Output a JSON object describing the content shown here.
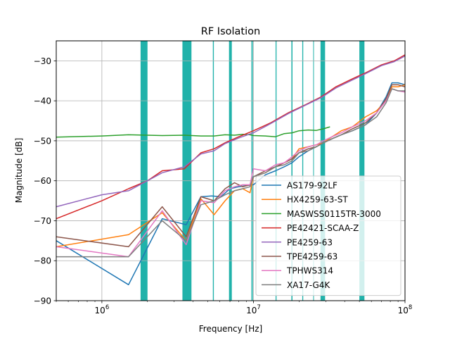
{
  "chart_data": {
    "type": "line",
    "title": "RF Isolation",
    "xlabel": "Frequency [Hz]",
    "ylabel": "Magnitude [dB]",
    "xscale": "log",
    "xlim": [
      500000,
      100000000
    ],
    "ylim": [
      -90,
      -25
    ],
    "grid": true,
    "legend_position": "lower-right",
    "x_ticks": [
      {
        "value": 1000000,
        "base": "10",
        "exp": "6"
      },
      {
        "value": 10000000,
        "base": "10",
        "exp": "7"
      },
      {
        "value": 100000000,
        "base": "10",
        "exp": "8"
      }
    ],
    "y_ticks": [
      {
        "value": -90,
        "label": "−90"
      },
      {
        "value": -80,
        "label": "−80"
      },
      {
        "value": -70,
        "label": "−70"
      },
      {
        "value": -60,
        "label": "−60"
      },
      {
        "value": -50,
        "label": "−50"
      },
      {
        "value": -40,
        "label": "−40"
      },
      {
        "value": -30,
        "label": "−30"
      }
    ],
    "highlight_color": "#20b2aa",
    "highlight_bands": [
      [
        1800000,
        2000000
      ],
      [
        3400000,
        3900000
      ],
      [
        5400000,
        5480000
      ],
      [
        6900000,
        7200000
      ],
      [
        9700000,
        9900000
      ],
      [
        14000000,
        14200000
      ],
      [
        17800000,
        18100000
      ],
      [
        21000000,
        21300000
      ],
      [
        24800000,
        25000000
      ],
      [
        27700000,
        29700000
      ],
      [
        50000000,
        54000000
      ]
    ],
    "series": [
      {
        "name": "AS179-92LF",
        "color": "#1f77b4",
        "x": [
          500000,
          1500000,
          2500000,
          3600000,
          4500000,
          5300000,
          6100000,
          7000000,
          8000000,
          9000000,
          10000000,
          12000000,
          14000000,
          16000000,
          18000000,
          20000000,
          23000000,
          26000000,
          29000000,
          33000000,
          38000000,
          45000000,
          55000000,
          65000000,
          75000000,
          82000000,
          90000000,
          100000000
        ],
        "y": [
          -75,
          -86,
          -69.5,
          -71,
          -64,
          -63.8,
          -64,
          -62,
          -61.5,
          -61.2,
          -61,
          -58.5,
          -57.5,
          -56.5,
          -55.5,
          -54,
          -52.5,
          -51.5,
          -50.5,
          -49.5,
          -48.5,
          -47.5,
          -46,
          -43,
          -39,
          -35.5,
          -35.5,
          -36
        ]
      },
      {
        "name": "HX4259-63-ST",
        "color": "#ff7f0e",
        "x": [
          500000,
          1500000,
          2500000,
          3600000,
          4500000,
          5500000,
          6500000,
          7500000,
          8500000,
          9500000,
          10000000,
          12000000,
          14000000,
          16000000,
          18000000,
          20000000,
          23000000,
          26000000,
          29000000,
          33000000,
          38000000,
          45000000,
          55000000,
          65000000,
          75000000,
          82000000,
          90000000,
          100000000
        ],
        "y": [
          -76.5,
          -73.5,
          -68,
          -75,
          -64.5,
          -68.5,
          -65,
          -62.5,
          -62,
          -63,
          -59,
          -58,
          -56.5,
          -55.5,
          -54.5,
          -52,
          -51.5,
          -51,
          -50.5,
          -49,
          -47.5,
          -46.5,
          -44,
          -42.5,
          -40,
          -36.5,
          -36.5,
          -36
        ]
      },
      {
        "name": "MASWSS0115TR-3000",
        "color": "#2ca02c",
        "x": [
          500000,
          1000000,
          1500000,
          2500000,
          3500000,
          4500000,
          5500000,
          6500000,
          7500000,
          8500000,
          9500000,
          10000000,
          12000000,
          14000000,
          16000000,
          18000000,
          20000000,
          23000000,
          26000000,
          29000000,
          32000000
        ],
        "y": [
          -49.1,
          -48.8,
          -48.5,
          -48.7,
          -48.6,
          -48.8,
          -48.8,
          -48.5,
          -48.6,
          -48.4,
          -48.5,
          -48.7,
          -48.8,
          -49,
          -48.2,
          -48,
          -47.5,
          -47.3,
          -47.4,
          -47,
          -46.5
        ]
      },
      {
        "name": "PE42421-SCAA-Z",
        "color": "#d62728",
        "x": [
          500000,
          1000000,
          1500000,
          2000000,
          2500000,
          3500000,
          4500000,
          5500000,
          6500000,
          8000000,
          10000000,
          13000000,
          17000000,
          22000000,
          28000000,
          35000000,
          45000000,
          55000000,
          70000000,
          85000000,
          100000000
        ],
        "y": [
          -69.5,
          -65,
          -62,
          -60,
          -57.5,
          -57,
          -53,
          -52,
          -50.5,
          -49,
          -47.5,
          -45.5,
          -43,
          -41,
          -39,
          -36.5,
          -34.5,
          -33,
          -31,
          -30,
          -28.5
        ]
      },
      {
        "name": "PE4259-63",
        "color": "#9467bd",
        "x": [
          500000,
          1000000,
          1500000,
          2000000,
          2500000,
          3500000,
          4500000,
          5500000,
          6500000,
          8000000,
          10000000,
          13000000,
          17000000,
          22000000,
          28000000,
          35000000,
          45000000,
          55000000,
          70000000,
          85000000,
          100000000
        ],
        "y": [
          -66.5,
          -63.5,
          -62.5,
          -60,
          -58,
          -56.5,
          -53.3,
          -52.5,
          -50.7,
          -49.3,
          -48,
          -45.7,
          -43.2,
          -41.1,
          -39.2,
          -36.8,
          -34.8,
          -33.2,
          -31.2,
          -30.2,
          -28.8
        ]
      },
      {
        "name": "TPE4259-63",
        "color": "#8c564b",
        "x": [
          500000,
          1500000,
          2500000,
          3600000,
          4500000,
          5500000,
          6500000,
          7500000,
          8500000,
          9500000,
          10000000,
          12000000,
          14000000,
          16000000,
          18000000,
          20000000,
          23000000,
          26000000,
          29000000,
          33000000,
          38000000,
          45000000,
          55000000,
          65000000,
          75000000,
          82000000,
          90000000,
          100000000
        ],
        "y": [
          -74,
          -76.5,
          -66.5,
          -74,
          -64,
          -65,
          -62,
          -60.5,
          -61.5,
          -61,
          -59,
          -57.5,
          -56.5,
          -55.5,
          -54.5,
          -53,
          -52,
          -51.5,
          -50.5,
          -49.5,
          -48.5,
          -47,
          -45.5,
          -43,
          -39.5,
          -36,
          -36,
          -36.5
        ]
      },
      {
        "name": "TPHWS314",
        "color": "#e377c2",
        "x": [
          500000,
          1500000,
          2500000,
          3600000,
          4500000,
          5500000,
          6500000,
          7500000,
          8500000,
          9500000,
          10000000,
          12000000,
          14000000,
          16000000,
          18000000,
          20000000,
          23000000,
          26000000,
          29000000,
          33000000,
          38000000,
          45000000,
          55000000,
          65000000,
          75000000,
          82000000,
          90000000,
          100000000
        ],
        "y": [
          -76.5,
          -79,
          -67.5,
          -76,
          -65,
          -65.5,
          -62.5,
          -61.5,
          -61,
          -61,
          -57,
          -57.5,
          -56,
          -55.5,
          -54,
          -52.5,
          -51.5,
          -51,
          -50,
          -49,
          -48,
          -46.5,
          -45,
          -43,
          -40,
          -37,
          -37.5,
          -37.8
        ]
      },
      {
        "name": "XA17-G4K",
        "color": "#7f7f7f",
        "x": [
          500000,
          1500000,
          2500000,
          3600000,
          4500000,
          5500000,
          6500000,
          7500000,
          8500000,
          9500000,
          10000000,
          12000000,
          14000000,
          16000000,
          18000000,
          20000000,
          23000000,
          26000000,
          29000000,
          33000000,
          38000000,
          45000000,
          55000000,
          65000000,
          75000000,
          82000000,
          90000000,
          100000000
        ],
        "y": [
          -79,
          -79,
          -70,
          -75,
          -66,
          -65,
          -63.5,
          -62.5,
          -62,
          -61.5,
          -59,
          -58,
          -56.5,
          -56,
          -55,
          -53,
          -52.5,
          -51.5,
          -50.5,
          -49.5,
          -48.5,
          -47.5,
          -46,
          -44,
          -40.5,
          -37,
          -37.5,
          -37.5
        ]
      }
    ]
  }
}
